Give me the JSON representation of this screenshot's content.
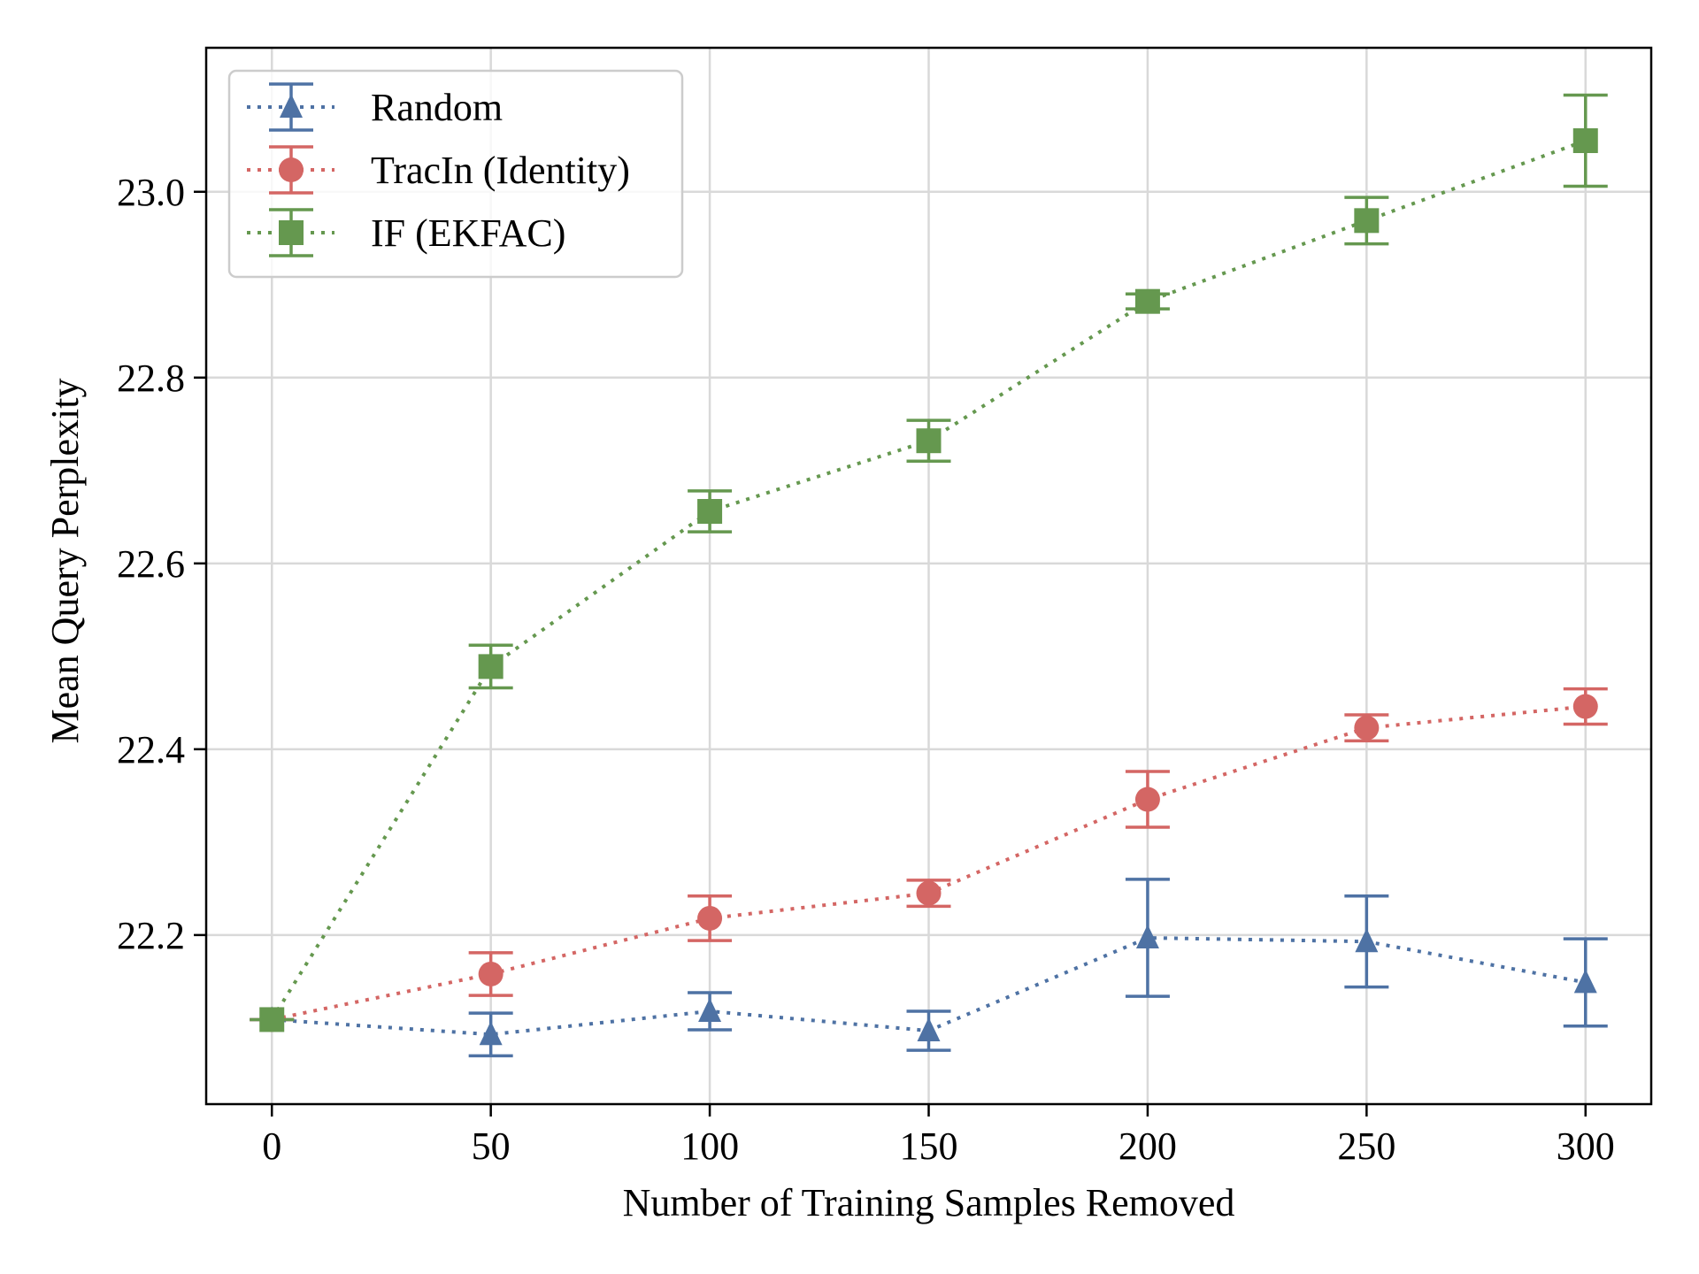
{
  "chart_data": {
    "type": "line",
    "title": "",
    "xlabel": "Number of Training Samples Removed",
    "ylabel": "Mean Query Perplexity",
    "x": [
      0,
      50,
      100,
      150,
      200,
      250,
      300
    ],
    "xlim": [
      -15,
      315
    ],
    "ylim": [
      22.018,
      23.155
    ],
    "xticks": [
      0,
      50,
      100,
      150,
      200,
      250,
      300
    ],
    "xtick_labels": [
      "0",
      "50",
      "100",
      "150",
      "200",
      "250",
      "300"
    ],
    "yticks": [
      22.2,
      22.4,
      22.6,
      22.8,
      23.0
    ],
    "ytick_labels": [
      "22.2",
      "22.4",
      "22.6",
      "22.8",
      "23.0"
    ],
    "grid": true,
    "legend_position": "top-left",
    "series": [
      {
        "name": "Random",
        "color": "#4e72a4",
        "marker": "triangle",
        "linestyle": "dotted",
        "values": [
          22.109,
          22.093,
          22.118,
          22.097,
          22.197,
          22.193,
          22.149
        ],
        "errors": [
          0.0,
          0.023,
          0.02,
          0.021,
          0.063,
          0.049,
          0.047
        ]
      },
      {
        "name": "TracIn (Identity)",
        "color": "#d46664",
        "marker": "circle",
        "linestyle": "dotted",
        "values": [
          22.109,
          22.158,
          22.218,
          22.245,
          22.346,
          22.423,
          22.446
        ],
        "errors": [
          0.0,
          0.023,
          0.024,
          0.014,
          0.03,
          0.014,
          0.019
        ]
      },
      {
        "name": "IF (EKFAC)",
        "color": "#65984f",
        "marker": "square",
        "linestyle": "dotted",
        "values": [
          22.109,
          22.489,
          22.656,
          22.732,
          22.882,
          22.969,
          23.055
        ],
        "errors": [
          0.0,
          0.023,
          0.022,
          0.022,
          0.008,
          0.025,
          0.049
        ]
      }
    ]
  }
}
